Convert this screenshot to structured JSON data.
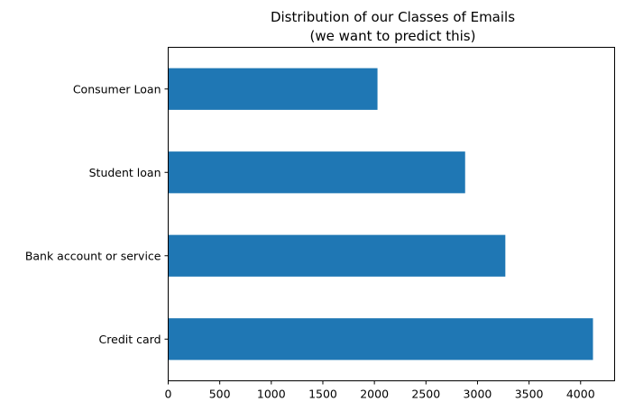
{
  "chart_data": {
    "type": "bar",
    "orientation": "horizontal",
    "title": "Distribution of our Classes of Emails",
    "subtitle": "(we want to predict this)",
    "xlabel": "",
    "ylabel": "",
    "categories": [
      "Consumer Loan",
      "Student loan",
      "Bank account or service",
      "Credit card"
    ],
    "values": [
      2030,
      2880,
      3270,
      4120
    ],
    "xlim": [
      0,
      4330
    ],
    "xticks": [
      0,
      500,
      1000,
      1500,
      2000,
      2500,
      3000,
      3500,
      4000
    ],
    "xtick_labels": [
      "0",
      "500",
      "1000",
      "1500",
      "2000",
      "2500",
      "3000",
      "3500",
      "4000"
    ],
    "bar_color": "#1f77b4",
    "grid": false,
    "legend": "none"
  }
}
